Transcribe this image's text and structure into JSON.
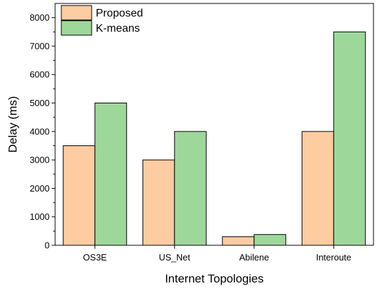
{
  "chart_data": {
    "type": "bar",
    "title": "",
    "xlabel": "Internet Topologies",
    "ylabel": "Delay (ms)",
    "categories": [
      "OS3E",
      "US_Net",
      "Abilene",
      "Interoute"
    ],
    "series": [
      {
        "name": "Proposed",
        "values": [
          3500,
          3000,
          300,
          4000
        ],
        "color": "#FDCCA0"
      },
      {
        "name": "K-means",
        "values": [
          5000,
          4000,
          380,
          7500
        ],
        "color": "#9DD89A"
      }
    ],
    "ylim": [
      0,
      8500
    ],
    "yticks": [
      0,
      1000,
      2000,
      3000,
      4000,
      5000,
      6000,
      7000,
      8000
    ],
    "grid": false,
    "legend": "top-left"
  }
}
